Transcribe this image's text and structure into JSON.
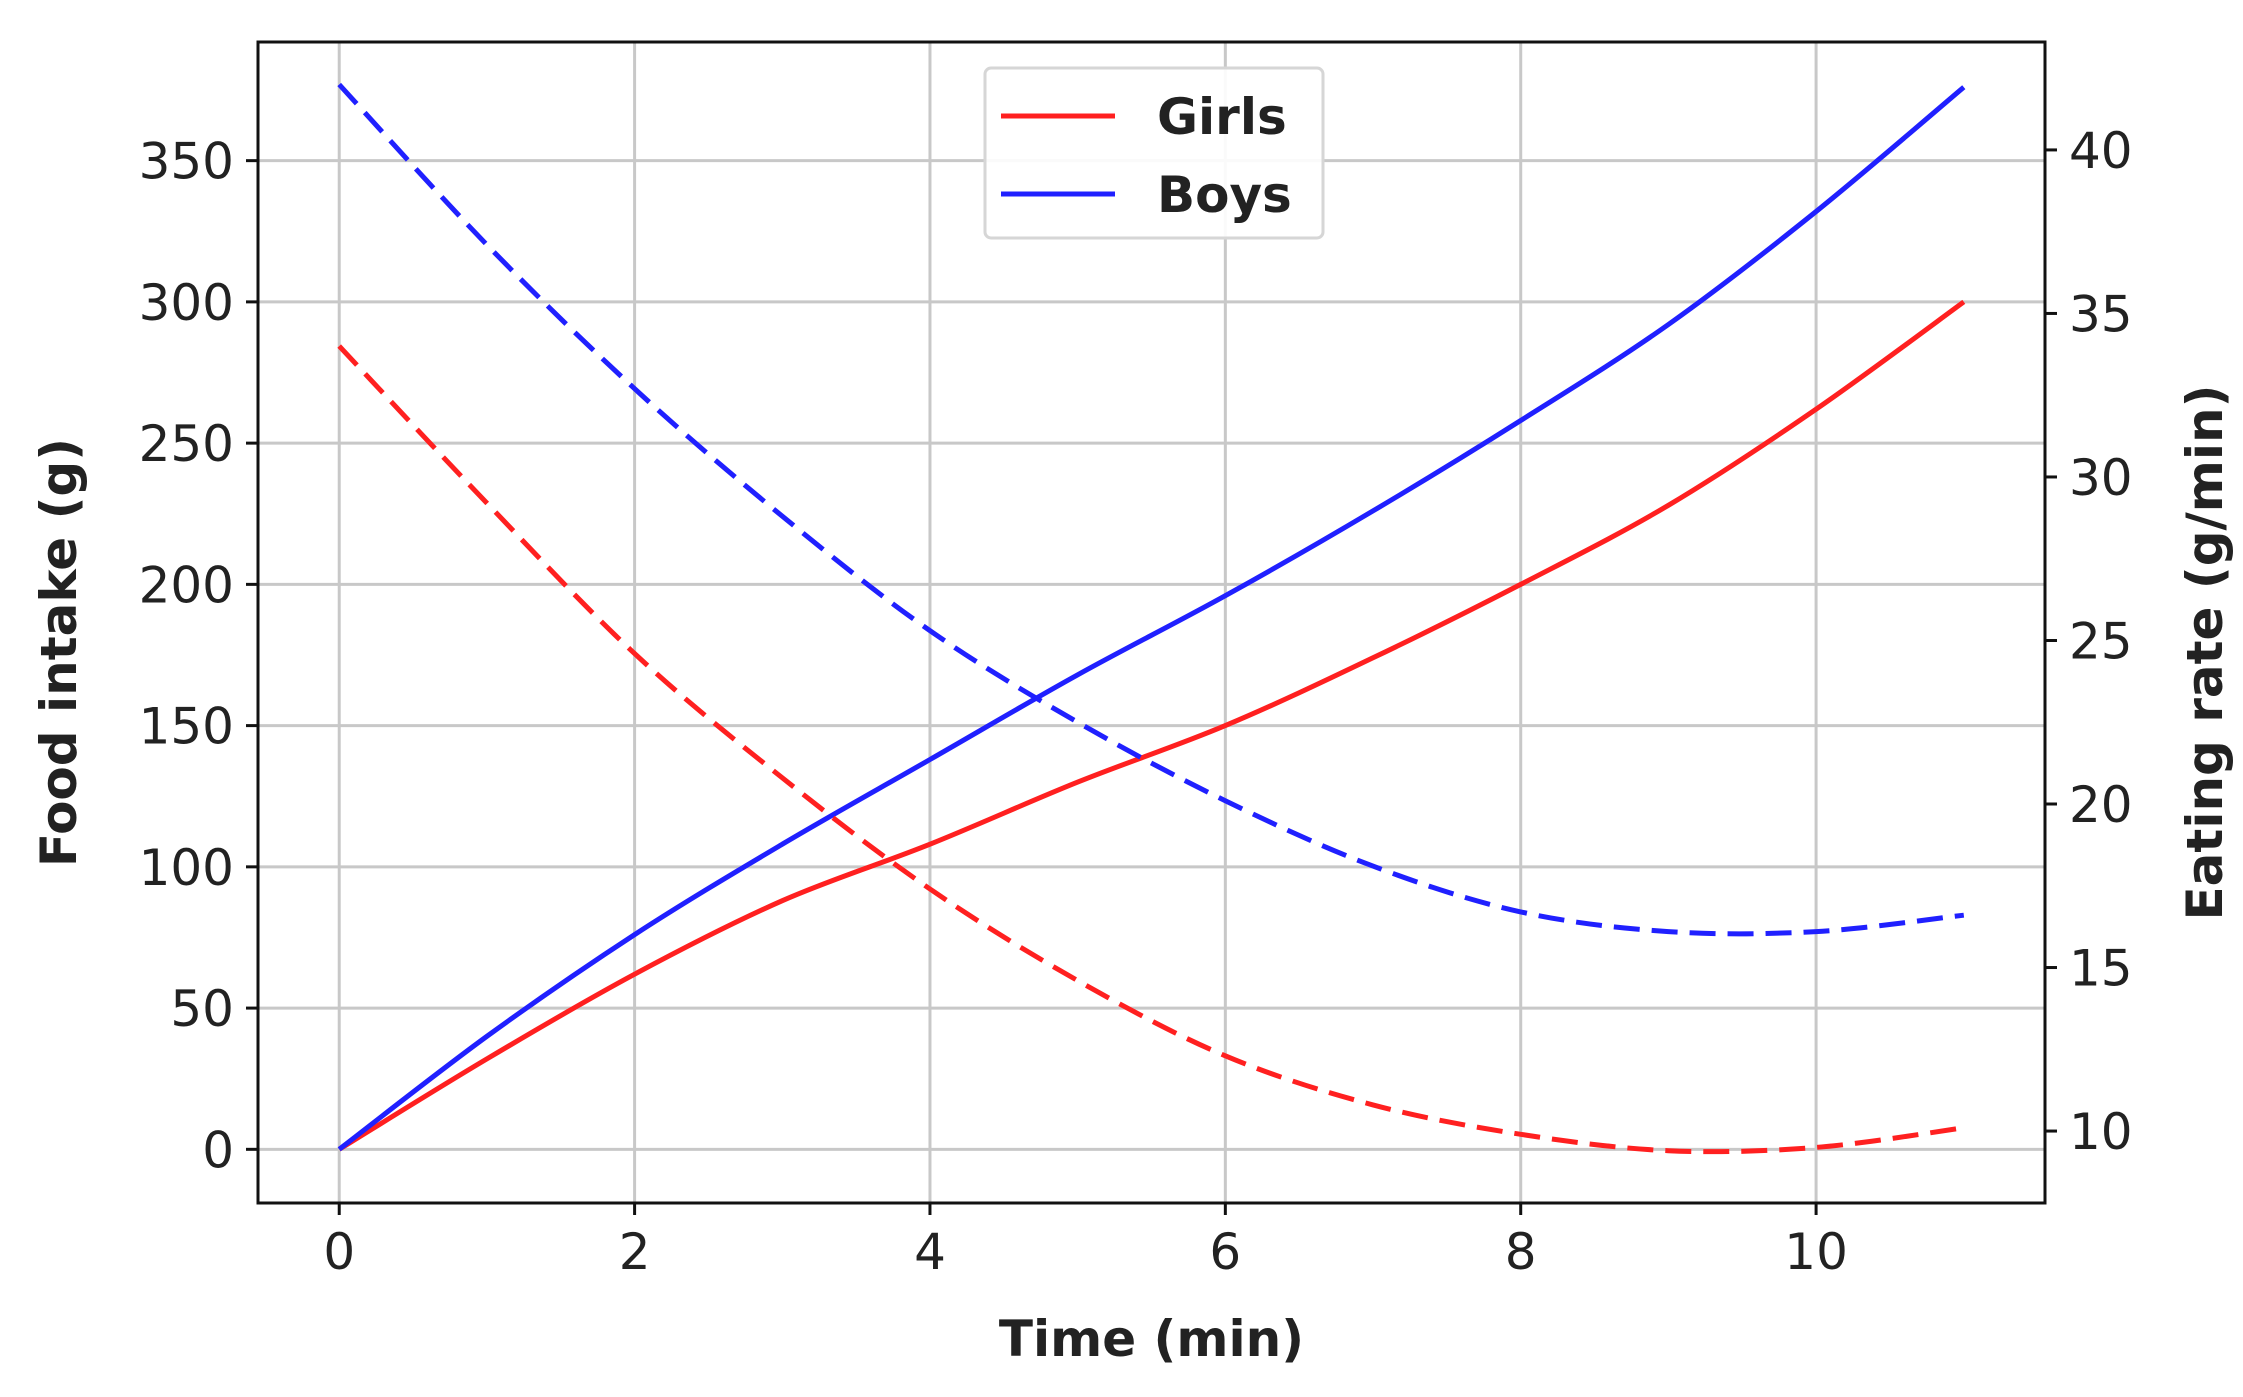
{
  "chart_data": {
    "type": "line",
    "title": "",
    "xlabel": "Time (min)",
    "ylabel": "Food intake (g)",
    "y2label": "Eating rate (g/min)",
    "xlim": [
      -0.55,
      11.55
    ],
    "ylim": [
      -19,
      392
    ],
    "y2lim": [
      7.8,
      43.3
    ],
    "xticks": [
      0,
      2,
      4,
      6,
      8,
      10
    ],
    "yticks": [
      0,
      50,
      100,
      150,
      200,
      250,
      300,
      350
    ],
    "y2ticks": [
      10,
      15,
      20,
      25,
      30,
      35,
      40
    ],
    "grid": true,
    "legend": {
      "placement": "upper center"
    },
    "x": [
      0,
      1,
      2,
      3,
      4,
      5,
      6,
      7,
      8,
      9,
      10,
      11
    ],
    "series": [
      {
        "name": "Girls",
        "axis": "left",
        "style": "solid",
        "color": "#ff2020",
        "values": [
          0,
          32,
          62,
          88,
          108,
          130,
          150,
          174,
          200,
          228,
          262,
          300
        ]
      },
      {
        "name": "Boys",
        "axis": "left",
        "style": "solid",
        "color": "#2020ff",
        "values": [
          0,
          40,
          76,
          108,
          138,
          168,
          196,
          226,
          258,
          292,
          332,
          376
        ]
      },
      {
        "name": "",
        "axis": "right",
        "style": "dashed",
        "color": "#ff2020",
        "values": [
          34,
          29.2,
          24.6,
          20.8,
          17.4,
          14.6,
          12.3,
          10.8,
          9.9,
          9.4,
          9.5,
          10.1
        ]
      },
      {
        "name": "",
        "axis": "right",
        "style": "dashed",
        "color": "#2020ff",
        "values": [
          42,
          37.1,
          32.7,
          28.8,
          25.3,
          22.5,
          20.1,
          18.1,
          16.7,
          16.1,
          16.1,
          16.6
        ]
      }
    ]
  }
}
